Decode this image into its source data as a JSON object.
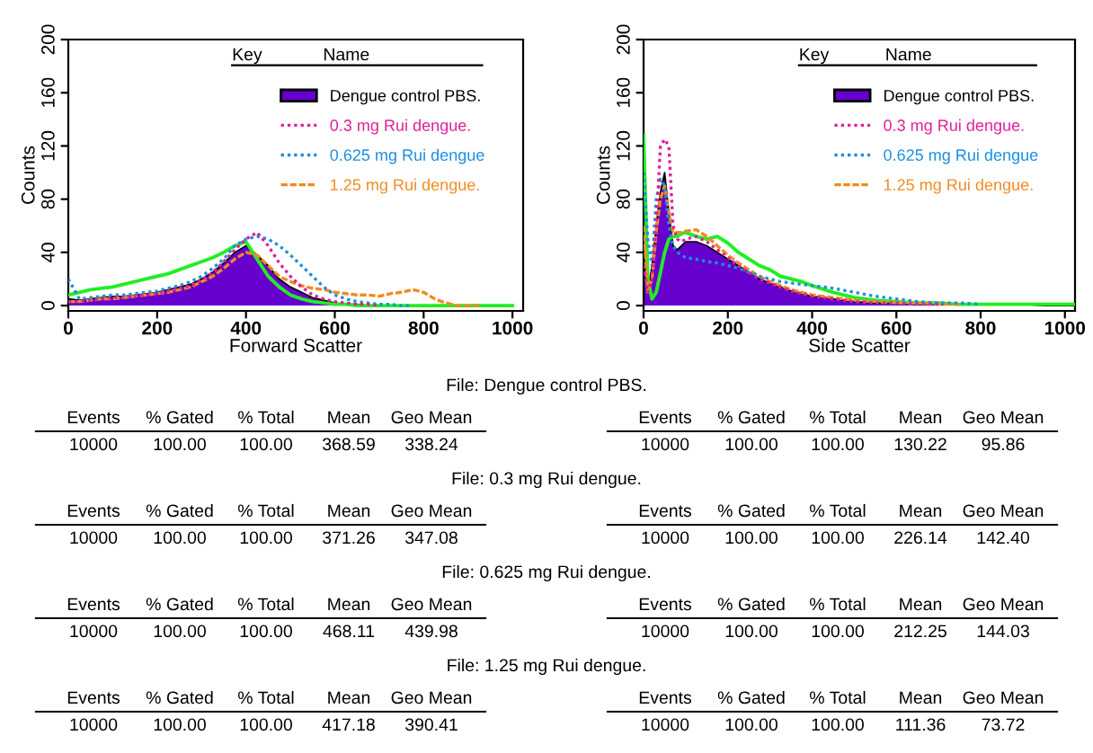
{
  "chart_data": [
    {
      "type": "line",
      "xlabel": "Forward Scatter",
      "ylabel": "Counts",
      "xlim": [
        0,
        1024
      ],
      "xticks": [
        0,
        200,
        400,
        600,
        800,
        1000
      ],
      "ylim": [
        -4,
        200
      ],
      "yticks": [
        0,
        40,
        80,
        120,
        160,
        200
      ],
      "legend": "top right",
      "annotations": [
        "Key",
        "Name"
      ],
      "x": [
        0,
        25,
        50,
        75,
        100,
        125,
        150,
        175,
        200,
        225,
        250,
        275,
        300,
        325,
        350,
        375,
        400,
        425,
        450,
        475,
        500,
        525,
        550,
        575,
        600,
        625,
        650,
        675,
        700,
        725,
        750,
        775,
        800,
        825,
        850,
        875,
        900,
        925,
        950,
        975,
        1000
      ],
      "series": [
        {
          "name": "Dengue control PBS.",
          "type": "area",
          "color": "#6600cc",
          "values": [
            5,
            4,
            5,
            6,
            7,
            7,
            8,
            9,
            10,
            12,
            14,
            16,
            20,
            25,
            32,
            40,
            45,
            38,
            30,
            20,
            14,
            10,
            6,
            4,
            2,
            1,
            1,
            0,
            0,
            0,
            0,
            0,
            0,
            0,
            0,
            0,
            0,
            0,
            0,
            0,
            0
          ]
        },
        {
          "name": "0.3 mg Rui dengue.",
          "type": "line",
          "line_style": "dotted",
          "color": "#e0209a",
          "values": [
            3,
            3,
            4,
            5,
            6,
            6,
            7,
            8,
            9,
            11,
            13,
            15,
            19,
            25,
            33,
            42,
            50,
            55,
            45,
            32,
            22,
            14,
            8,
            5,
            3,
            2,
            1,
            1,
            0,
            null,
            null,
            null,
            null,
            null,
            null,
            null,
            null,
            null,
            null,
            null,
            null
          ]
        },
        {
          "name": "0.625 mg Rui dengue",
          "type": "line",
          "line_style": "dotted",
          "color": "#1a8fe0",
          "values": [
            20,
            5,
            6,
            7,
            8,
            8,
            9,
            10,
            11,
            13,
            15,
            18,
            22,
            28,
            35,
            45,
            50,
            52,
            50,
            45,
            38,
            30,
            22,
            14,
            8,
            5,
            3,
            2,
            1,
            1,
            0,
            0,
            null,
            null,
            null,
            null,
            null,
            null,
            null,
            null,
            null
          ]
        },
        {
          "name": "1.25 mg Rui dengue.",
          "type": "line",
          "line_style": "dashed",
          "color": "#f08a20",
          "values": [
            3,
            3,
            4,
            5,
            5,
            6,
            7,
            8,
            9,
            10,
            12,
            14,
            18,
            22,
            28,
            35,
            40,
            38,
            30,
            22,
            18,
            15,
            13,
            12,
            10,
            9,
            8,
            8,
            7,
            9,
            10,
            12,
            10,
            5,
            2,
            0,
            0,
            0,
            null,
            null,
            null
          ]
        },
        {
          "type": "line",
          "line_style": "solid",
          "color": "#22ee22",
          "values": [
            8,
            10,
            12,
            13,
            14,
            16,
            18,
            20,
            22,
            24,
            27,
            30,
            33,
            36,
            40,
            45,
            48,
            35,
            22,
            14,
            8,
            5,
            3,
            2,
            1,
            1,
            0,
            0,
            0,
            0,
            0,
            0,
            0,
            0,
            0,
            0,
            0,
            0,
            0,
            0,
            0
          ]
        }
      ]
    },
    {
      "type": "line",
      "xlabel": "Side Scatter",
      "ylabel": "Counts",
      "xlim": [
        0,
        1024
      ],
      "xticks": [
        0,
        200,
        400,
        600,
        800,
        1000
      ],
      "ylim": [
        -4,
        200
      ],
      "yticks": [
        0,
        40,
        80,
        120,
        160,
        200
      ],
      "legend": "top right",
      "annotations": [
        "Key",
        "Name"
      ],
      "x": [
        0,
        10,
        20,
        30,
        40,
        50,
        60,
        70,
        80,
        90,
        100,
        125,
        150,
        175,
        200,
        225,
        250,
        275,
        300,
        325,
        350,
        375,
        400,
        450,
        500,
        550,
        600,
        650,
        700,
        750,
        800,
        850,
        900,
        950,
        1000,
        1020
      ],
      "series": [
        {
          "name": "Dengue control PBS.",
          "type": "area",
          "color": "#6600cc",
          "values": [
            40,
            10,
            30,
            60,
            85,
            100,
            70,
            45,
            42,
            45,
            48,
            48,
            45,
            40,
            35,
            30,
            25,
            20,
            17,
            14,
            11,
            9,
            7,
            5,
            3,
            2,
            2,
            1,
            1,
            1,
            1,
            1,
            1,
            0,
            0,
            0
          ]
        },
        {
          "name": "0.3 mg Rui dengue.",
          "type": "line",
          "line_style": "dotted",
          "color": "#e0209a",
          "values": [
            30,
            10,
            20,
            60,
            120,
            125,
            120,
            60,
            50,
            48,
            50,
            52,
            48,
            42,
            36,
            30,
            25,
            20,
            17,
            14,
            11,
            9,
            7,
            5,
            3,
            2,
            2,
            1,
            1,
            null,
            null,
            null,
            null,
            null,
            null,
            null
          ]
        },
        {
          "name": "0.625 mg Rui dengue",
          "type": "line",
          "line_style": "dotted",
          "color": "#1a8fe0",
          "values": [
            100,
            50,
            30,
            80,
            95,
            90,
            60,
            45,
            40,
            38,
            36,
            35,
            33,
            32,
            30,
            28,
            25,
            22,
            20,
            18,
            17,
            16,
            15,
            13,
            10,
            7,
            5,
            3,
            2,
            2,
            1,
            null,
            null,
            null,
            null,
            null
          ]
        },
        {
          "name": "1.25 mg Rui dengue.",
          "type": "line",
          "line_style": "dashed",
          "color": "#f08a20",
          "values": [
            60,
            10,
            20,
            55,
            80,
            90,
            70,
            55,
            55,
            55,
            56,
            57,
            52,
            45,
            38,
            32,
            27,
            22,
            18,
            15,
            12,
            10,
            8,
            6,
            4,
            3,
            2,
            2,
            1,
            1,
            null,
            null,
            null,
            null,
            null,
            null
          ]
        },
        {
          "type": "line",
          "line_style": "solid",
          "color": "#22ee22",
          "values": [
            128,
            20,
            5,
            10,
            25,
            40,
            50,
            52,
            52,
            54,
            55,
            52,
            50,
            52,
            47,
            40,
            35,
            30,
            27,
            22,
            20,
            18,
            15,
            10,
            6,
            4,
            3,
            2,
            2,
            1,
            1,
            1,
            1,
            1,
            1,
            1
          ]
        }
      ]
    },
    {
      "type": "other",
      "title": "File: Dengue control PBS.",
      "categories": [
        "Events",
        "% Gated",
        "% Total",
        "Mean",
        "Geo Mean"
      ],
      "cell_labels": [
        [
          "10000",
          "100.00",
          "100.00",
          "368.59",
          "338.24"
        ],
        [
          "10000",
          "100.00",
          "100.00",
          "130.22",
          "95.86"
        ]
      ]
    },
    {
      "type": "other",
      "title": "File: 0.3 mg Rui dengue.",
      "categories": [
        "Events",
        "% Gated",
        "% Total",
        "Mean",
        "Geo Mean"
      ],
      "cell_labels": [
        [
          "10000",
          "100.00",
          "100.00",
          "371.26",
          "347.08"
        ],
        [
          "10000",
          "100.00",
          "100.00",
          "226.14",
          "142.40"
        ]
      ]
    },
    {
      "type": "other",
      "title": "File: 0.625 mg Rui dengue.",
      "categories": [
        "Events",
        "% Gated",
        "% Total",
        "Mean",
        "Geo Mean"
      ],
      "cell_labels": [
        [
          "10000",
          "100.00",
          "100.00",
          "468.11",
          "439.98"
        ],
        [
          "10000",
          "100.00",
          "100.00",
          "212.25",
          "144.03"
        ]
      ]
    },
    {
      "type": "other",
      "title": "File: 1.25 mg Rui dengue.",
      "categories": [
        "Events",
        "% Gated",
        "% Total",
        "Mean",
        "Geo Mean"
      ],
      "cell_labels": [
        [
          "10000",
          "100.00",
          "100.00",
          "417.18",
          "390.41"
        ],
        [
          "10000",
          "100.00",
          "100.00",
          "111.36",
          "73.72"
        ]
      ]
    }
  ]
}
